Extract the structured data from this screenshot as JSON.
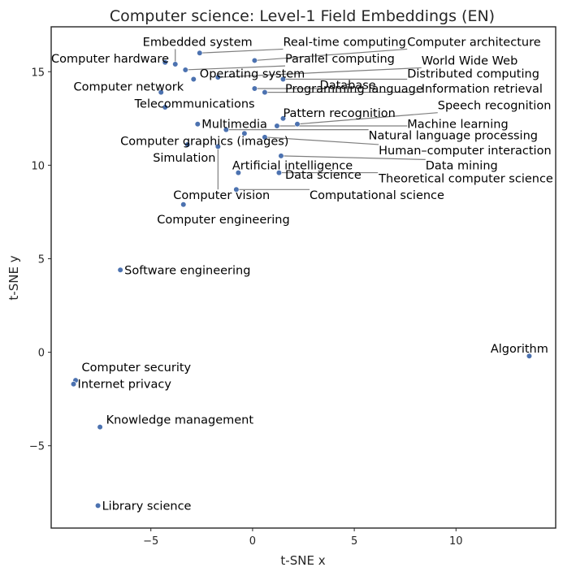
{
  "chart_data": {
    "type": "scatter",
    "title": "Computer science: Level-1 Field Embeddings (EN)",
    "xlabel": "t-SNE x",
    "ylabel": "t-SNE y",
    "xlim": [
      -9.9,
      14.9
    ],
    "ylim": [
      -9.4,
      17.4
    ],
    "xticks": [
      -5,
      0,
      5,
      10
    ],
    "yticks": [
      -5,
      0,
      5,
      10,
      15
    ],
    "tick_labels_x": [
      "−5",
      "0",
      "5",
      "10"
    ],
    "tick_labels_y": [
      "−5",
      "0",
      "5",
      "10",
      "15"
    ],
    "grid": false,
    "marker_color": "#4c72b0",
    "leader_color": "#7f7f7f",
    "points": [
      {
        "name": "Computer hardware",
        "x": -4.3,
        "y": 15.5,
        "lx": -9.9,
        "ly": 15.7
      },
      {
        "name": "Embedded system",
        "x": -3.8,
        "y": 15.4,
        "lx": -5.4,
        "ly": 16.6
      },
      {
        "name": "Real-time computing",
        "x": -2.6,
        "y": 16.0,
        "lx": 1.5,
        "ly": 16.6
      },
      {
        "name": "Computer architecture",
        "x": 0.1,
        "y": 15.6,
        "lx": 7.6,
        "ly": 16.6
      },
      {
        "name": "Parallel computing",
        "x": -3.3,
        "y": 15.1,
        "lx": 1.6,
        "ly": 15.7
      },
      {
        "name": "World Wide Web",
        "x": -1.7,
        "y": 14.7,
        "lx": 8.3,
        "ly": 15.6
      },
      {
        "name": "Operating system",
        "x": -2.9,
        "y": 14.6,
        "lx": -2.6,
        "ly": 14.9
      },
      {
        "name": "Distributed computing",
        "x": 1.5,
        "y": 14.6,
        "lx": 7.6,
        "ly": 14.9
      },
      {
        "name": "Database",
        "x": 0.1,
        "y": 14.1,
        "lx": 3.3,
        "ly": 14.3
      },
      {
        "name": "Computer network",
        "x": -4.5,
        "y": 13.9,
        "lx": -8.8,
        "ly": 14.2
      },
      {
        "name": "Programming language",
        "x": 0.6,
        "y": 13.9,
        "lx": 1.6,
        "ly": 14.1
      },
      {
        "name": "Information retrieval",
        "x": 0.6,
        "y": 13.9,
        "lx": 8.3,
        "ly": 14.1
      },
      {
        "name": "Telecommunications",
        "x": -4.3,
        "y": 13.1,
        "lx": -5.8,
        "ly": 13.3
      },
      {
        "name": "Speech recognition",
        "x": 2.2,
        "y": 12.2,
        "lx": 9.1,
        "ly": 13.2
      },
      {
        "name": "Pattern recognition",
        "x": 1.5,
        "y": 12.5,
        "lx": 1.5,
        "ly": 12.8
      },
      {
        "name": "Multimedia",
        "x": -2.7,
        "y": 12.2,
        "lx": -2.5,
        "ly": 12.2
      },
      {
        "name": "Machine learning",
        "x": 1.2,
        "y": 12.1,
        "lx": 7.6,
        "ly": 12.2
      },
      {
        "name": "Natural language processing",
        "x": -1.3,
        "y": 11.9,
        "lx": 5.7,
        "ly": 11.6
      },
      {
        "name": "Computer graphics (images)",
        "x": -0.4,
        "y": 11.7,
        "lx": -6.5,
        "ly": 11.3
      },
      {
        "name": "Human–computer interaction",
        "x": 0.6,
        "y": 11.5,
        "lx": 6.2,
        "ly": 10.8
      },
      {
        "name": "Simulation",
        "x": -3.2,
        "y": 11.1,
        "lx": -4.9,
        "ly": 10.4
      },
      {
        "name": "Data mining",
        "x": 1.4,
        "y": 10.5,
        "lx": 8.5,
        "ly": 10.0
      },
      {
        "name": "Artificial intelligence",
        "x": -0.7,
        "y": 9.6,
        "lx": -1.0,
        "ly": 10.0
      },
      {
        "name": "Data science",
        "x": 1.3,
        "y": 9.6,
        "lx": 1.6,
        "ly": 9.5
      },
      {
        "name": "Theoretical computer science",
        "x": 1.3,
        "y": 9.6,
        "lx": 6.2,
        "ly": 9.3
      },
      {
        "name": "Computer vision",
        "x": -1.7,
        "y": 11.0,
        "lx": -3.9,
        "ly": 8.4
      },
      {
        "name": "Computational science",
        "x": -0.8,
        "y": 8.7,
        "lx": 2.8,
        "ly": 8.4
      },
      {
        "name": "Computer engineering",
        "x": -3.4,
        "y": 7.9,
        "lx": -4.7,
        "ly": 7.1
      },
      {
        "name": "Software engineering",
        "x": -6.5,
        "y": 4.4,
        "lx": -6.3,
        "ly": 4.4
      },
      {
        "name": "Algorithm",
        "x": 13.6,
        "y": -0.2,
        "lx": 11.7,
        "ly": 0.2
      },
      {
        "name": "Computer security",
        "x": -8.7,
        "y": -1.5,
        "lx": -8.4,
        "ly": -0.8
      },
      {
        "name": "Internet privacy",
        "x": -8.8,
        "y": -1.7,
        "lx": -8.6,
        "ly": -1.7
      },
      {
        "name": "Knowledge management",
        "x": -7.5,
        "y": -4.0,
        "lx": -7.2,
        "ly": -3.6
      },
      {
        "name": "Library science",
        "x": -7.6,
        "y": -8.2,
        "lx": -7.4,
        "ly": -8.2
      }
    ]
  }
}
